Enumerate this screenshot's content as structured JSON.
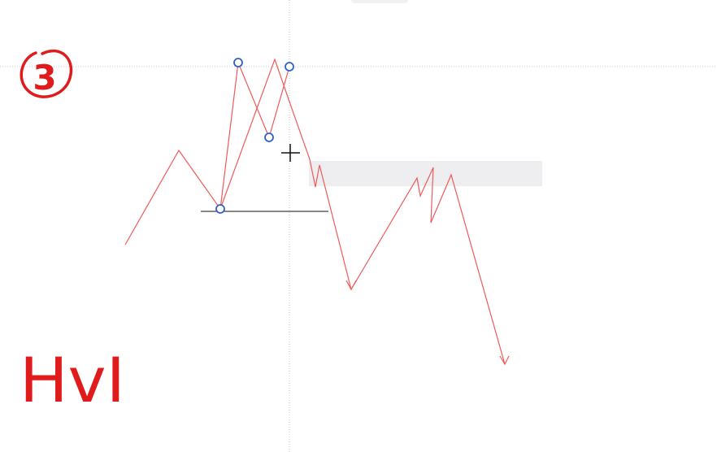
{
  "annotations": {
    "step_number": "3",
    "label": "HvI"
  },
  "colors": {
    "background": "#ffffff",
    "price_path": "#ef5a5a",
    "anchor_point": "#2f5fd0",
    "level_line": "#111111",
    "zone_fill": "#eeeef0",
    "marker_ink": "#e01b1b",
    "crosshair_guides": "#c8c8c8"
  },
  "cursor": {
    "icon": "crosshair-cursor-icon"
  }
}
